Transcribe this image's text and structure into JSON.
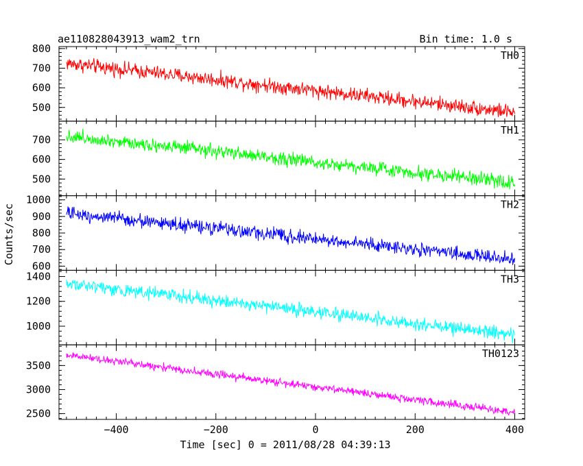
{
  "header": {
    "title": "ae110828043913_wam2_trn",
    "bin_time": "Bin time: 1.0 s"
  },
  "axes": {
    "xlabel": "Time [sec] 0 = 2011/08/28 04:39:13",
    "ylabel": "Counts/sec"
  },
  "chart_data": {
    "type": "line",
    "x_range": [
      -515,
      420
    ],
    "x_ticks": [
      -400,
      -200,
      0,
      200,
      400
    ],
    "x_start": -500,
    "x_end": 400,
    "panels": [
      {
        "name": "TH0",
        "color": "#ff0000",
        "ylim": [
          430,
          810
        ],
        "yticks": [
          500,
          600,
          700,
          800
        ],
        "start": 725,
        "end": 475,
        "noise": 32
      },
      {
        "name": "TH1",
        "color": "#00ff00",
        "ylim": [
          415,
          795
        ],
        "yticks": [
          500,
          600,
          700
        ],
        "start": 720,
        "end": 480,
        "noise": 30
      },
      {
        "name": "TH2",
        "color": "#0000ff",
        "ylim": [
          575,
          1025
        ],
        "yticks": [
          600,
          700,
          800,
          900,
          1000
        ],
        "start": 920,
        "end": 640,
        "noise": 35
      },
      {
        "name": "TH3",
        "color": "#00ffff",
        "ylim": [
          850,
          1450
        ],
        "yticks": [
          1000,
          1200,
          1400
        ],
        "start": 1345,
        "end": 930,
        "noise": 45
      },
      {
        "name": "TH0123",
        "color": "#ff00ff",
        "ylim": [
          2380,
          3930
        ],
        "yticks": [
          2500,
          3000,
          3500
        ],
        "start": 3720,
        "end": 2520,
        "noise": 70
      }
    ]
  }
}
